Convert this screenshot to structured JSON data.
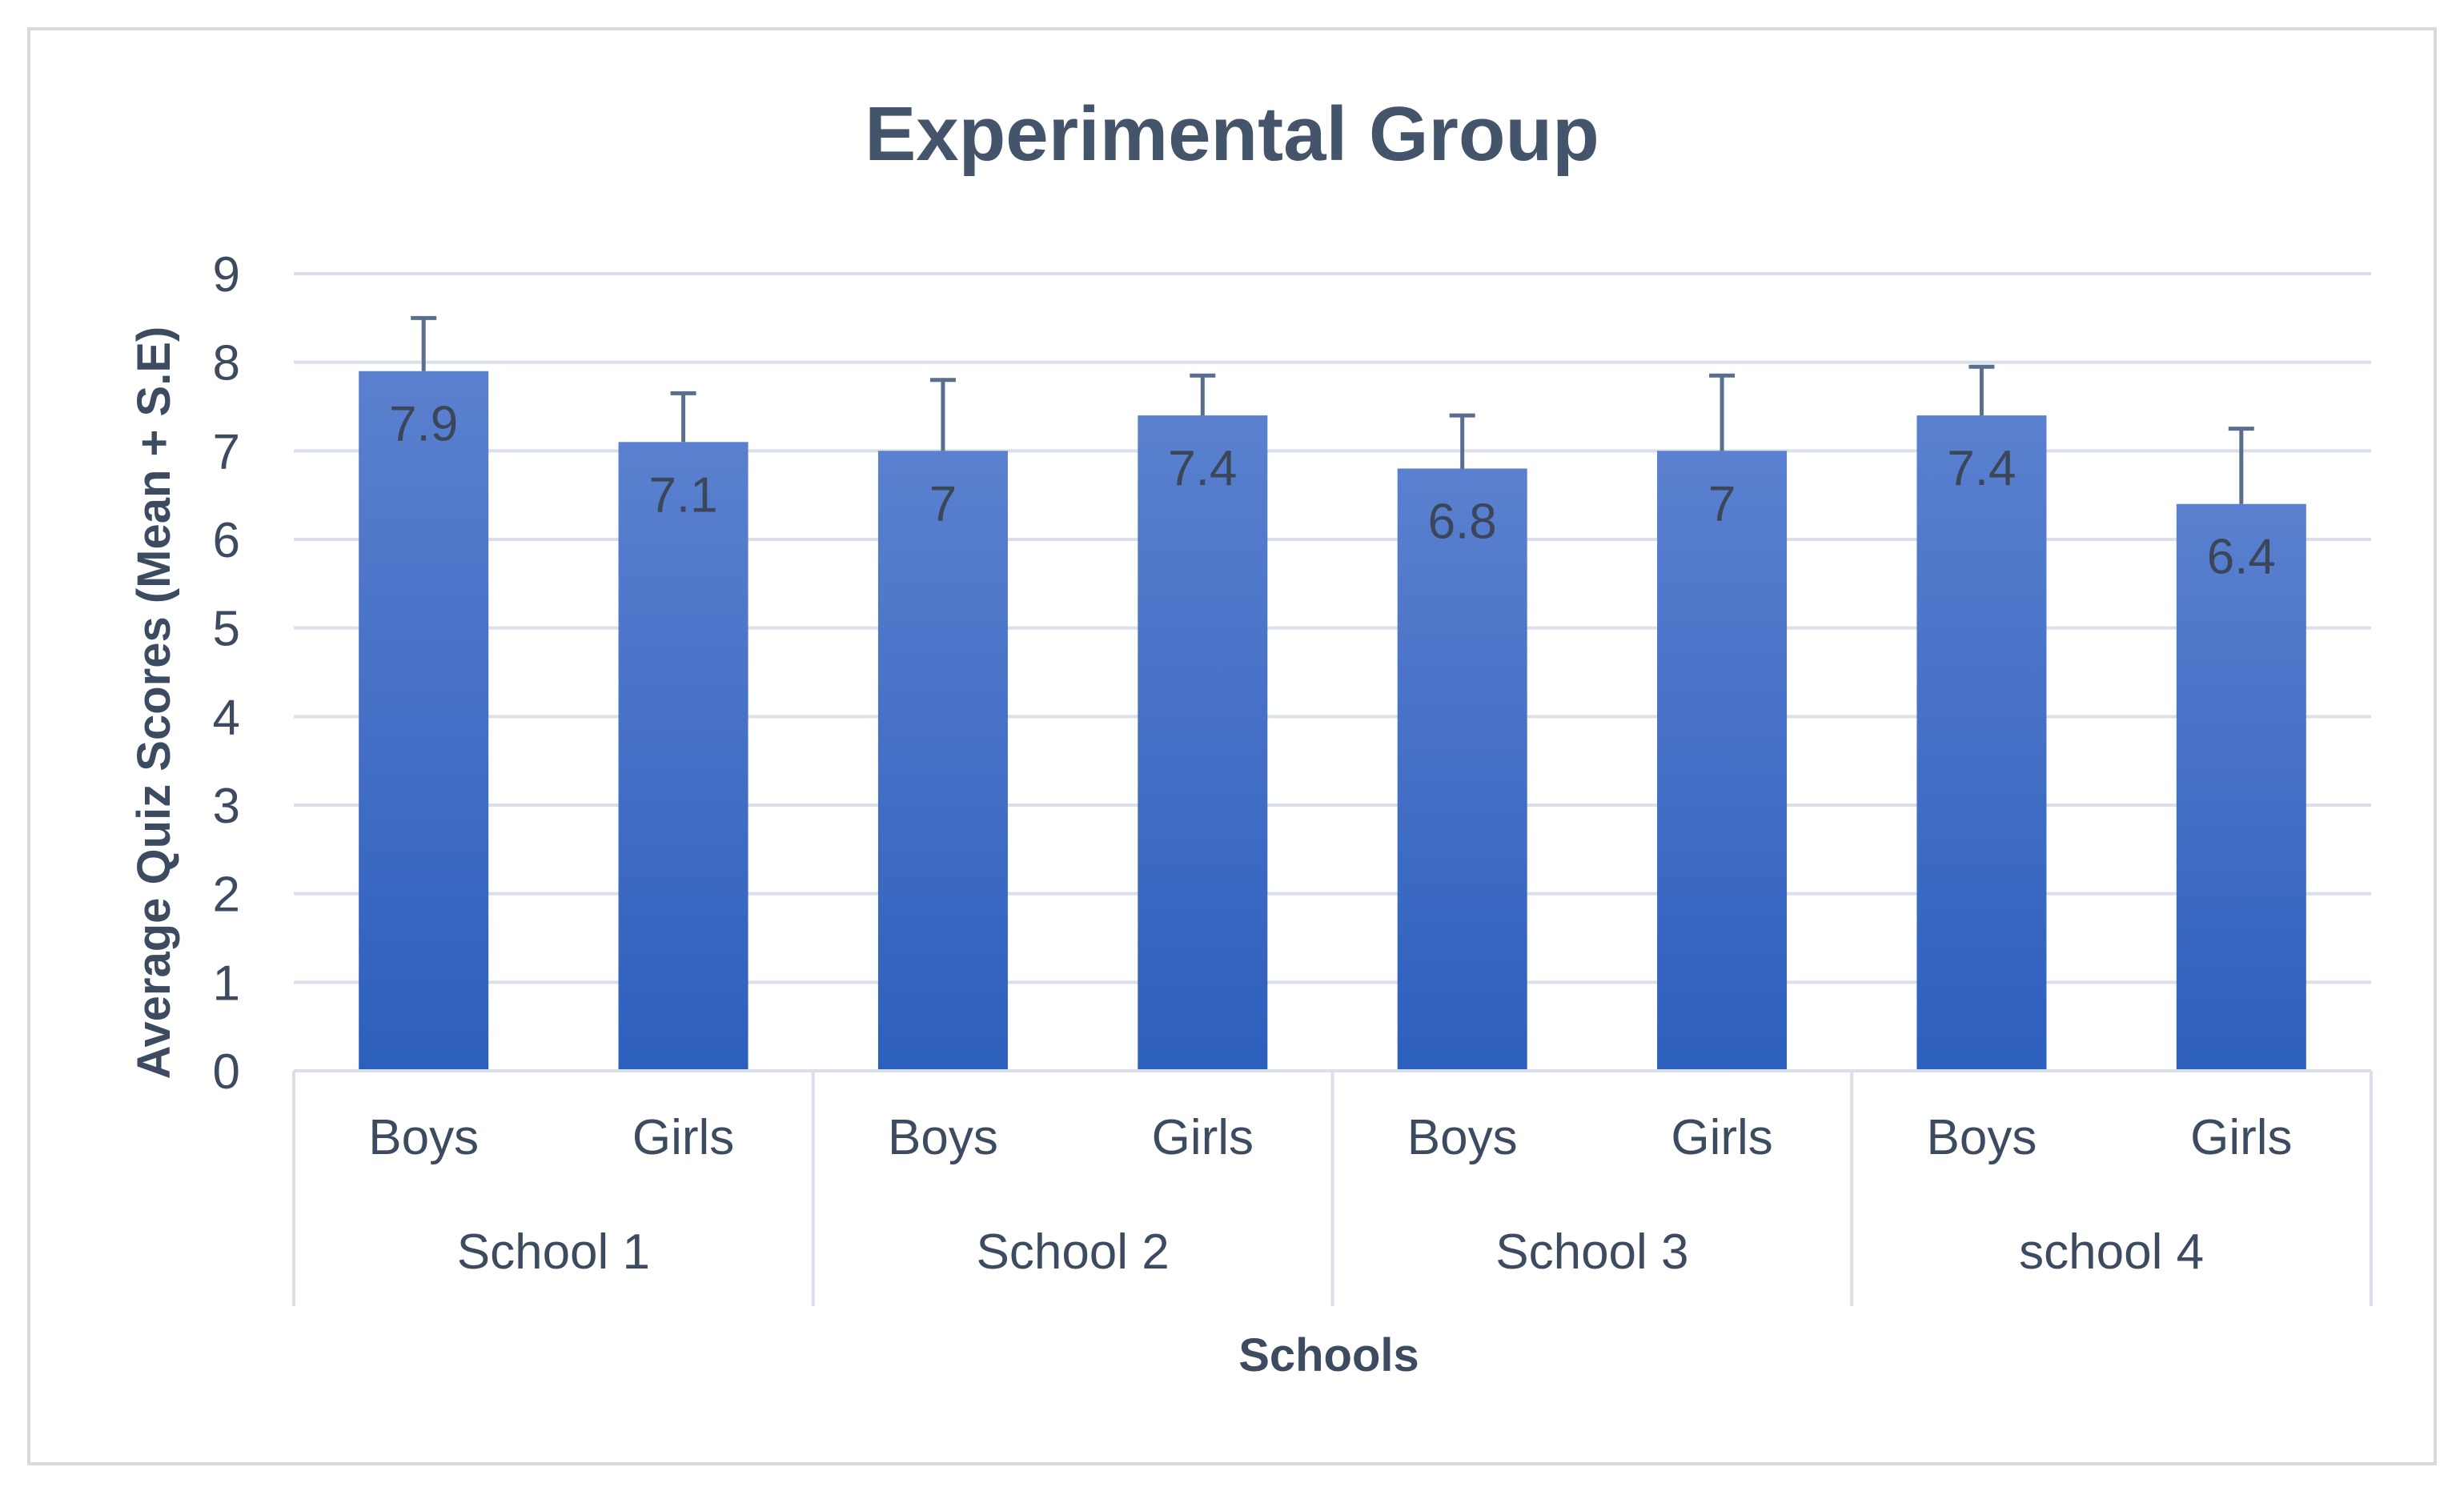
{
  "chart_data": {
    "type": "bar",
    "title": "Experimental Group",
    "xlabel": "Schools",
    "ylabel": "Average Quiz Scores (Mean + S.E)",
    "ylim": [
      0,
      9
    ],
    "yticks": [
      "0",
      "1",
      "2",
      "3",
      "4",
      "5",
      "6",
      "7",
      "8",
      "9"
    ],
    "grid": true,
    "groups": [
      {
        "label": "School 1",
        "bars": [
          {
            "label": "Boys",
            "value": 7.9,
            "error": 0.6,
            "value_label": "7.9"
          },
          {
            "label": "Girls",
            "value": 7.1,
            "error": 0.55,
            "value_label": "7.1"
          }
        ]
      },
      {
        "label": "School 2",
        "bars": [
          {
            "label": "Boys",
            "value": 7.0,
            "error": 0.8,
            "value_label": "7"
          },
          {
            "label": "Girls",
            "value": 7.4,
            "error": 0.45,
            "value_label": "7.4"
          }
        ]
      },
      {
        "label": "School 3",
        "bars": [
          {
            "label": "Boys",
            "value": 6.8,
            "error": 0.6,
            "value_label": "6.8"
          },
          {
            "label": "Girls",
            "value": 7.0,
            "error": 0.85,
            "value_label": "7"
          }
        ]
      },
      {
        "label": "school 4",
        "bars": [
          {
            "label": "Boys",
            "value": 7.4,
            "error": 0.55,
            "value_label": "7.4"
          },
          {
            "label": "Girls",
            "value": 6.4,
            "error": 0.85,
            "value_label": "6.4"
          }
        ]
      }
    ]
  },
  "colors": {
    "bar_top": "#5b80cf",
    "bar_bottom": "#2d5fbd",
    "error_bar": "#5a6f8e",
    "grid": "#d9e0ea",
    "axis_text": "#3d4b61",
    "title_text": "#44546a",
    "frame": "#d9d9d9"
  }
}
